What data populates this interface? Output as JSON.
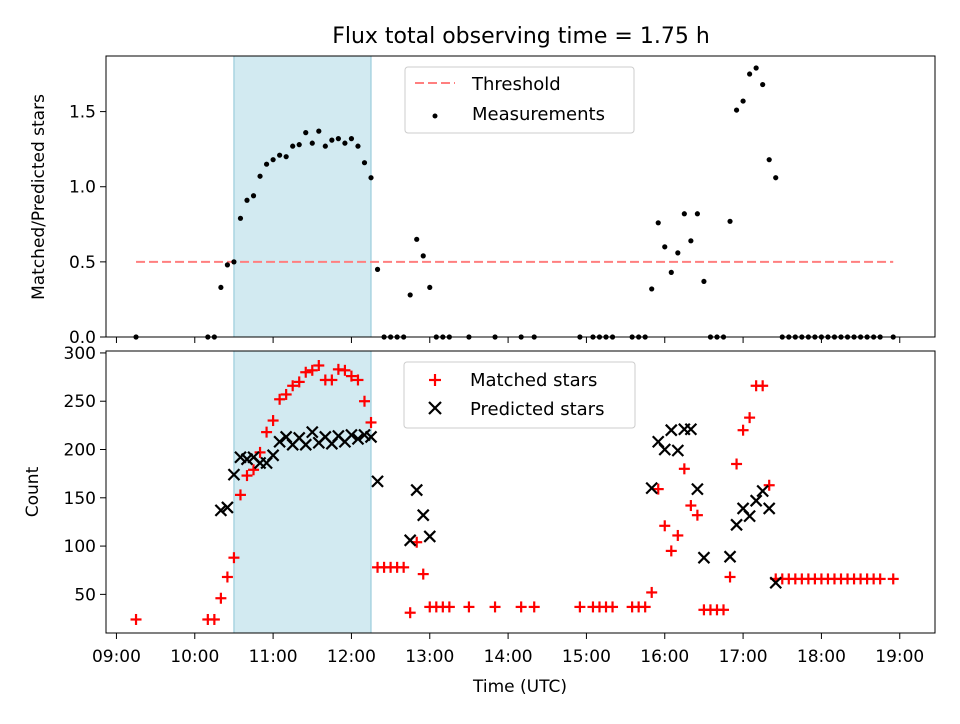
{
  "figure": {
    "title": "Flux total observing time = 1.75 h",
    "shaded_span": {
      "x_start": "10:30",
      "x_end": "12:15",
      "color": "#add8e6"
    }
  },
  "chart_data": [
    {
      "type": "scatter",
      "name": "ratio_panel",
      "title": "Flux total observing time = 1.75 h",
      "xlabel": "",
      "ylabel": "Matched/Predicted stars",
      "xlim": [
        "08:52",
        "19:27"
      ],
      "ylim": [
        0,
        1.87
      ],
      "yticks": [
        "0.0",
        "0.5",
        "1.0",
        "1.5"
      ],
      "legend_position": "upper-center",
      "threshold": {
        "name": "Threshold",
        "y": 0.5,
        "x_start": "09:15",
        "x_end": "18:55",
        "color": "#ff7f7f",
        "style": "dashed"
      },
      "series": [
        {
          "name": "Measurements",
          "color": "#000000",
          "marker": "dot",
          "points": [
            [
              "09:15",
              0
            ],
            [
              "10:10",
              0
            ],
            [
              "10:15",
              0
            ],
            [
              "10:20",
              0.33
            ],
            [
              "10:25",
              0.48
            ],
            [
              "10:30",
              0.5
            ],
            [
              "10:35",
              0.79
            ],
            [
              "10:40",
              0.91
            ],
            [
              "10:45",
              0.94
            ],
            [
              "10:50",
              1.07
            ],
            [
              "10:55",
              1.15
            ],
            [
              "11:00",
              1.18
            ],
            [
              "11:05",
              1.21
            ],
            [
              "11:10",
              1.2
            ],
            [
              "11:15",
              1.27
            ],
            [
              "11:20",
              1.28
            ],
            [
              "11:25",
              1.36
            ],
            [
              "11:30",
              1.29
            ],
            [
              "11:35",
              1.37
            ],
            [
              "11:40",
              1.27
            ],
            [
              "11:45",
              1.31
            ],
            [
              "11:50",
              1.32
            ],
            [
              "11:55",
              1.29
            ],
            [
              "12:00",
              1.32
            ],
            [
              "12:05",
              1.27
            ],
            [
              "12:10",
              1.16
            ],
            [
              "12:15",
              1.06
            ],
            [
              "12:20",
              0.45
            ],
            [
              "12:25",
              0
            ],
            [
              "12:30",
              0
            ],
            [
              "12:35",
              0
            ],
            [
              "12:40",
              0
            ],
            [
              "12:45",
              0.28
            ],
            [
              "12:50",
              0.65
            ],
            [
              "12:55",
              0.54
            ],
            [
              "13:00",
              0.33
            ],
            [
              "13:05",
              0
            ],
            [
              "13:10",
              0
            ],
            [
              "13:15",
              0
            ],
            [
              "13:30",
              0
            ],
            [
              "13:50",
              0
            ],
            [
              "14:10",
              0
            ],
            [
              "14:20",
              0
            ],
            [
              "14:55",
              0
            ],
            [
              "15:05",
              0
            ],
            [
              "15:10",
              0
            ],
            [
              "15:15",
              0
            ],
            [
              "15:20",
              0
            ],
            [
              "15:35",
              0
            ],
            [
              "15:40",
              0
            ],
            [
              "15:45",
              0
            ],
            [
              "15:50",
              0.32
            ],
            [
              "15:55",
              0.76
            ],
            [
              "16:00",
              0.6
            ],
            [
              "16:05",
              0.43
            ],
            [
              "16:10",
              0.56
            ],
            [
              "16:15",
              0.82
            ],
            [
              "16:20",
              0.64
            ],
            [
              "16:25",
              0.82
            ],
            [
              "16:30",
              0.37
            ],
            [
              "16:35",
              0
            ],
            [
              "16:40",
              0
            ],
            [
              "16:45",
              0
            ],
            [
              "16:50",
              0.77
            ],
            [
              "16:55",
              1.51
            ],
            [
              "17:00",
              1.57
            ],
            [
              "17:05",
              1.75
            ],
            [
              "17:10",
              1.79
            ],
            [
              "17:15",
              1.68
            ],
            [
              "17:20",
              1.18
            ],
            [
              "17:25",
              1.06
            ],
            [
              "17:30",
              0
            ],
            [
              "17:35",
              0
            ],
            [
              "17:40",
              0
            ],
            [
              "17:45",
              0
            ],
            [
              "17:50",
              0
            ],
            [
              "17:55",
              0
            ],
            [
              "18:00",
              0
            ],
            [
              "18:05",
              0
            ],
            [
              "18:10",
              0
            ],
            [
              "18:15",
              0
            ],
            [
              "18:20",
              0
            ],
            [
              "18:25",
              0
            ],
            [
              "18:30",
              0
            ],
            [
              "18:35",
              0
            ],
            [
              "18:40",
              0
            ],
            [
              "18:45",
              0
            ],
            [
              "18:55",
              0
            ]
          ]
        }
      ]
    },
    {
      "type": "scatter",
      "name": "count_panel",
      "xlabel": "Time (UTC)",
      "ylabel": "Count",
      "xlim": [
        "08:52",
        "19:27"
      ],
      "ylim": [
        10,
        302
      ],
      "yticks": [
        "50",
        "100",
        "150",
        "200",
        "250",
        "300"
      ],
      "xticks": [
        "09:00",
        "10:00",
        "11:00",
        "12:00",
        "13:00",
        "14:00",
        "15:00",
        "16:00",
        "17:00",
        "18:00",
        "19:00"
      ],
      "legend_position": "upper-center",
      "series": [
        {
          "name": "Matched stars",
          "color": "#ff0000",
          "marker": "plus",
          "points": [
            [
              "09:15",
              24
            ],
            [
              "10:10",
              24
            ],
            [
              "10:15",
              24
            ],
            [
              "10:20",
              46
            ],
            [
              "10:25",
              68
            ],
            [
              "10:30",
              88
            ],
            [
              "10:35",
              153
            ],
            [
              "10:40",
              173
            ],
            [
              "10:45",
              179
            ],
            [
              "10:50",
              197
            ],
            [
              "10:55",
              218
            ],
            [
              "11:00",
              230
            ],
            [
              "11:05",
              252
            ],
            [
              "11:10",
              257
            ],
            [
              "11:15",
              266
            ],
            [
              "11:20",
              270
            ],
            [
              "11:25",
              280
            ],
            [
              "11:30",
              282
            ],
            [
              "11:35",
              287
            ],
            [
              "11:40",
              272
            ],
            [
              "11:45",
              272
            ],
            [
              "11:50",
              283
            ],
            [
              "11:55",
              282
            ],
            [
              "12:00",
              276
            ],
            [
              "12:05",
              272
            ],
            [
              "12:10",
              250
            ],
            [
              "12:15",
              228
            ],
            [
              "12:20",
              78
            ],
            [
              "12:25",
              78
            ],
            [
              "12:30",
              78
            ],
            [
              "12:35",
              78
            ],
            [
              "12:40",
              78
            ],
            [
              "12:45",
              31
            ],
            [
              "12:50",
              104
            ],
            [
              "12:55",
              71
            ],
            [
              "13:00",
              37
            ],
            [
              "13:05",
              37
            ],
            [
              "13:10",
              37
            ],
            [
              "13:15",
              37
            ],
            [
              "13:30",
              37
            ],
            [
              "13:50",
              37
            ],
            [
              "14:10",
              37
            ],
            [
              "14:20",
              37
            ],
            [
              "14:55",
              37
            ],
            [
              "15:05",
              37
            ],
            [
              "15:10",
              37
            ],
            [
              "15:15",
              37
            ],
            [
              "15:20",
              37
            ],
            [
              "15:35",
              37
            ],
            [
              "15:40",
              37
            ],
            [
              "15:45",
              37
            ],
            [
              "15:50",
              52
            ],
            [
              "15:55",
              159
            ],
            [
              "16:00",
              121
            ],
            [
              "16:05",
              95
            ],
            [
              "16:10",
              111
            ],
            [
              "16:15",
              180
            ],
            [
              "16:20",
              142
            ],
            [
              "16:25",
              132
            ],
            [
              "16:30",
              34
            ],
            [
              "16:35",
              34
            ],
            [
              "16:40",
              34
            ],
            [
              "16:45",
              34
            ],
            [
              "16:50",
              68
            ],
            [
              "16:55",
              185
            ],
            [
              "17:00",
              220
            ],
            [
              "17:05",
              233
            ],
            [
              "17:10",
              266
            ],
            [
              "17:15",
              266
            ],
            [
              "17:20",
              163
            ],
            [
              "17:25",
              66
            ],
            [
              "17:30",
              66
            ],
            [
              "17:35",
              66
            ],
            [
              "17:40",
              66
            ],
            [
              "17:45",
              66
            ],
            [
              "17:50",
              66
            ],
            [
              "17:55",
              66
            ],
            [
              "18:00",
              66
            ],
            [
              "18:05",
              66
            ],
            [
              "18:10",
              66
            ],
            [
              "18:15",
              66
            ],
            [
              "18:20",
              66
            ],
            [
              "18:25",
              66
            ],
            [
              "18:30",
              66
            ],
            [
              "18:35",
              66
            ],
            [
              "18:40",
              66
            ],
            [
              "18:45",
              66
            ],
            [
              "18:55",
              66
            ]
          ]
        },
        {
          "name": "Predicted stars",
          "color": "#000000",
          "marker": "x",
          "points": [
            [
              "10:20",
              137
            ],
            [
              "10:25",
              140
            ],
            [
              "10:30",
              174
            ],
            [
              "10:35",
              192
            ],
            [
              "10:40",
              190
            ],
            [
              "10:45",
              192
            ],
            [
              "10:50",
              186
            ],
            [
              "10:55",
              186
            ],
            [
              "11:00",
              194
            ],
            [
              "11:05",
              208
            ],
            [
              "11:10",
              213
            ],
            [
              "11:15",
              205
            ],
            [
              "11:20",
              212
            ],
            [
              "11:25",
              205
            ],
            [
              "11:30",
              218
            ],
            [
              "11:35",
              207
            ],
            [
              "11:40",
              213
            ],
            [
              "11:45",
              206
            ],
            [
              "11:50",
              214
            ],
            [
              "11:55",
              208
            ],
            [
              "12:00",
              215
            ],
            [
              "12:05",
              211
            ],
            [
              "12:10",
              215
            ],
            [
              "12:15",
              213
            ],
            [
              "12:20",
              167
            ],
            [
              "12:45",
              106
            ],
            [
              "12:50",
              158
            ],
            [
              "12:55",
              132
            ],
            [
              "13:00",
              110
            ],
            [
              "15:50",
              160
            ],
            [
              "15:55",
              208
            ],
            [
              "16:00",
              200
            ],
            [
              "16:05",
              220
            ],
            [
              "16:10",
              199
            ],
            [
              "16:15",
              221
            ],
            [
              "16:20",
              221
            ],
            [
              "16:25",
              159
            ],
            [
              "16:30",
              88
            ],
            [
              "16:50",
              89
            ],
            [
              "16:55",
              122
            ],
            [
              "17:00",
              139
            ],
            [
              "17:05",
              131
            ],
            [
              "17:10",
              147
            ],
            [
              "17:15",
              157
            ],
            [
              "17:20",
              139
            ],
            [
              "17:25",
              62
            ]
          ]
        }
      ]
    }
  ]
}
